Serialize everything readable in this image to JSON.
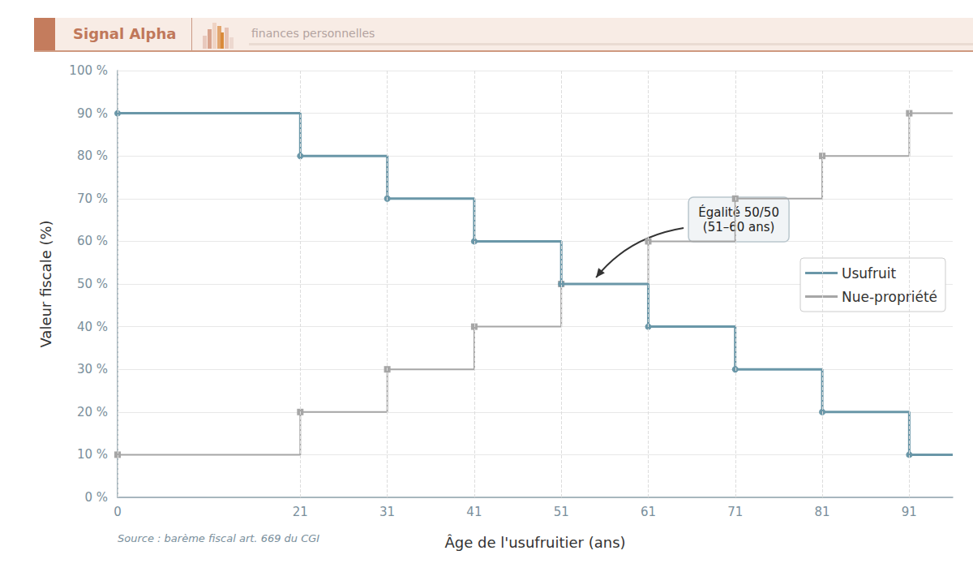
{
  "brand": {
    "name": "Signal Alpha",
    "tagline": "finances personnelles"
  },
  "chart_data": {
    "type": "step",
    "x_label": "Âge de l'usufruitier (ans)",
    "y_label": "Valeur fiscale (%)",
    "source": "Source : barème fiscal art. 669 du CGI",
    "x": [
      0,
      21,
      31,
      41,
      51,
      61,
      71,
      81,
      91
    ],
    "series": [
      {
        "name": "Usufruit",
        "color": "#6a97a8",
        "marker": "circle",
        "values": [
          90,
          80,
          70,
          60,
          50,
          40,
          30,
          20,
          10
        ]
      },
      {
        "name": "Nue-propriété",
        "color": "#a6a6a6",
        "marker": "square",
        "values": [
          10,
          20,
          30,
          40,
          50,
          60,
          70,
          80,
          90
        ]
      }
    ],
    "xlim": [
      0,
      96
    ],
    "xticks": [
      0,
      21,
      31,
      41,
      51,
      61,
      71,
      81,
      91
    ],
    "ylim": [
      0,
      100
    ],
    "yticks": [
      {
        "value": 0,
        "label": "0 %"
      },
      {
        "value": 10,
        "label": "10 %"
      },
      {
        "value": 20,
        "label": "20 %"
      },
      {
        "value": 30,
        "label": "30 %"
      },
      {
        "value": 40,
        "label": "40 %"
      },
      {
        "value": 50,
        "label": "50 %"
      },
      {
        "value": 60,
        "label": "60 %"
      },
      {
        "value": 70,
        "label": "70 %"
      },
      {
        "value": 80,
        "label": "80 %"
      },
      {
        "value": 90,
        "label": "90 %"
      },
      {
        "value": 100,
        "label": "100 %"
      }
    ],
    "grid": true,
    "legend": "right",
    "annotations": [
      {
        "text": "Égalité 50/50\n(51–60 ans)",
        "x": 55,
        "y": 50
      }
    ]
  }
}
